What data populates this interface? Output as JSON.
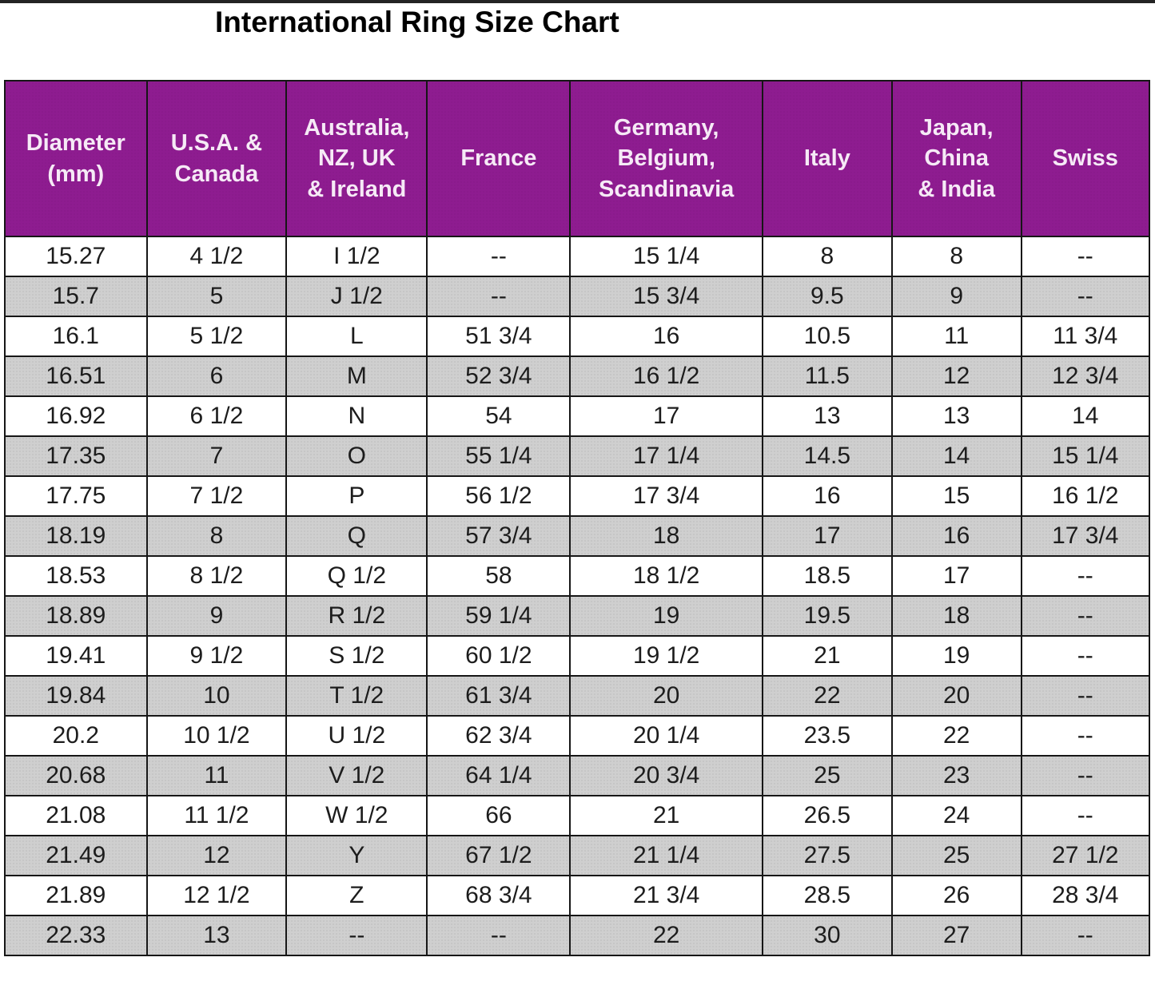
{
  "page": {
    "title": "International Ring Size Chart"
  },
  "colors": {
    "header_bg": "#8E1C90",
    "header_text": "#F6EAF6",
    "zebra_row_bg": "#CFCFCF",
    "row_bg": "#FFFFFF",
    "grid_border": "#161616",
    "cell_text": "#1C1C1C",
    "title_text": "#000000"
  },
  "chart_data": {
    "type": "table",
    "title": "International Ring Size Chart",
    "columns": [
      "Diameter (mm)",
      "U.S.A. & Canada",
      "Australia, NZ, UK & Ireland",
      "France",
      "Germany, Belgium, Scandinavia",
      "Italy",
      "Japan, China & India",
      "Swiss"
    ],
    "column_header_lines": [
      [
        "Diameter",
        "(mm)"
      ],
      [
        "U.S.A. &",
        "Canada"
      ],
      [
        "Australia,",
        "NZ, UK",
        "& Ireland"
      ],
      [
        "France"
      ],
      [
        "Germany,",
        "Belgium,",
        "Scandinavia"
      ],
      [
        "Italy"
      ],
      [
        "Japan,",
        "China",
        "& India"
      ],
      [
        "Swiss"
      ]
    ],
    "empty_marker": "--",
    "rows": [
      [
        "15.27",
        "4 1/2",
        "I 1/2",
        "--",
        "15 1/4",
        "8",
        "8",
        "--"
      ],
      [
        "15.7",
        "5",
        "J 1/2",
        "--",
        "15 3/4",
        "9.5",
        "9",
        "--"
      ],
      [
        "16.1",
        "5 1/2",
        "L",
        "51 3/4",
        "16",
        "10.5",
        "11",
        "11 3/4"
      ],
      [
        "16.51",
        "6",
        "M",
        "52 3/4",
        "16 1/2",
        "11.5",
        "12",
        "12 3/4"
      ],
      [
        "16.92",
        "6 1/2",
        "N",
        "54",
        "17",
        "13",
        "13",
        "14"
      ],
      [
        "17.35",
        "7",
        "O",
        "55 1/4",
        "17 1/4",
        "14.5",
        "14",
        "15 1/4"
      ],
      [
        "17.75",
        "7 1/2",
        "P",
        "56 1/2",
        "17 3/4",
        "16",
        "15",
        "16 1/2"
      ],
      [
        "18.19",
        "8",
        "Q",
        "57 3/4",
        "18",
        "17",
        "16",
        "17 3/4"
      ],
      [
        "18.53",
        "8 1/2",
        "Q 1/2",
        "58",
        "18 1/2",
        "18.5",
        "17",
        "--"
      ],
      [
        "18.89",
        "9",
        "R 1/2",
        "59 1/4",
        "19",
        "19.5",
        "18",
        "--"
      ],
      [
        "19.41",
        "9 1/2",
        "S 1/2",
        "60 1/2",
        "19 1/2",
        "21",
        "19",
        "--"
      ],
      [
        "19.84",
        "10",
        "T 1/2",
        "61 3/4",
        "20",
        "22",
        "20",
        "--"
      ],
      [
        "20.2",
        "10 1/2",
        "U 1/2",
        "62 3/4",
        "20 1/4",
        "23.5",
        "22",
        "--"
      ],
      [
        "20.68",
        "11",
        "V 1/2",
        "64 1/4",
        "20 3/4",
        "25",
        "23",
        "--"
      ],
      [
        "21.08",
        "11 1/2",
        "W 1/2",
        "66",
        "21",
        "26.5",
        "24",
        "--"
      ],
      [
        "21.49",
        "12",
        "Y",
        "67 1/2",
        "21 1/4",
        "27.5",
        "25",
        "27 1/2"
      ],
      [
        "21.89",
        "12 1/2",
        "Z",
        "68 3/4",
        "21 3/4",
        "28.5",
        "26",
        "28 3/4"
      ],
      [
        "22.33",
        "13",
        "--",
        "--",
        "22",
        "30",
        "27",
        "--"
      ]
    ],
    "layout": {
      "grid": true,
      "header_position": "top",
      "zebra": "even data rows shaded gray halftone"
    }
  }
}
